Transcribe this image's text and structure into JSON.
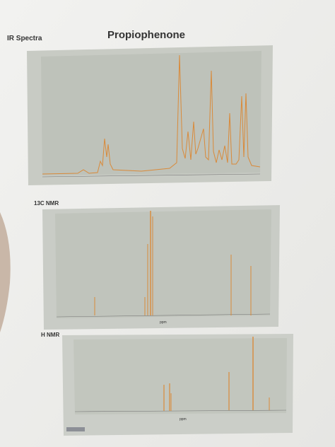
{
  "header": {
    "title": "Propiophenone"
  },
  "sections": [
    {
      "label": "IR Spectra"
    },
    {
      "label": "13C NMR",
      "axis_label": "ppm"
    },
    {
      "label": "H NMR",
      "axis_label": "ppm"
    }
  ]
}
